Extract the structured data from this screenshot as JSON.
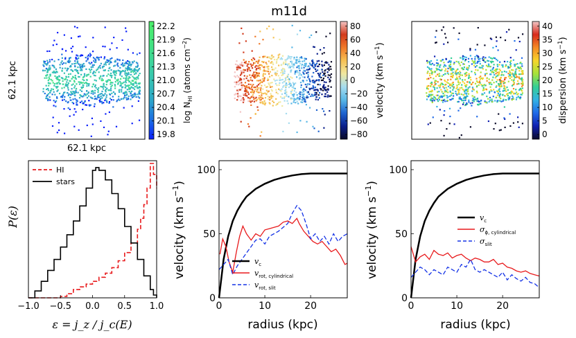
{
  "figure": {
    "title": "m11d"
  },
  "chart_data": [
    {
      "type": "heatmap",
      "id": "hi-column-density",
      "xlabel": "62.1 kpc",
      "ylabel": "62.1 kpc",
      "colorbar_label": "log N_HI (atoms cm^-2)",
      "colorbar_label_parts": {
        "pre": "log N",
        "sub": "HI",
        "post": " (atoms cm",
        "sup": "−2",
        "end": ")"
      },
      "colormap": [
        "#0a1ffb",
        "#1d70e3",
        "#2ea7c9",
        "#36c3b4",
        "#3fd79a",
        "#45e67e",
        "#4cf06a"
      ],
      "ticks": [
        "22.2",
        "21.9",
        "21.6",
        "21.3",
        "21.0",
        "20.7",
        "20.4",
        "20.1",
        "19.8"
      ]
    },
    {
      "type": "heatmap",
      "id": "velocity-map",
      "colorbar_label": "velocity (km s^-1)",
      "colorbar_label_parts": {
        "pre": "velocity (km s",
        "sup": "−1",
        "end": ")"
      },
      "colormap": [
        "#0a0a28",
        "#0b1f8a",
        "#1e64d0",
        "#58b7e6",
        "#a5dcef",
        "#f0e8a0",
        "#f6c154",
        "#f07a2a",
        "#d23a1c",
        "#f3c4c4"
      ],
      "ticks": [
        "80",
        "60",
        "40",
        "20",
        "0",
        "−20",
        "−40",
        "−60",
        "−80"
      ]
    },
    {
      "type": "heatmap",
      "id": "dispersion-map",
      "colorbar_label": "dispersion (km s^-1)",
      "colorbar_label_parts": {
        "pre": "dispersion (km s",
        "sup": "−1",
        "end": ")"
      },
      "colormap": [
        "#0b0b2a",
        "#1020b0",
        "#1f6ae8",
        "#33b1e4",
        "#34cf96",
        "#a6e23b",
        "#f6d52c",
        "#f58a25",
        "#d82b1d",
        "#f2c8c8"
      ],
      "ticks": [
        "40",
        "35",
        "30",
        "25",
        "20",
        "15",
        "10",
        "5",
        "0"
      ]
    },
    {
      "type": "line",
      "id": "epsilon-distribution",
      "xlabel": "ε = j_z / j_c(E)",
      "ylabel": "P(ε)",
      "xlim": [
        -1.0,
        1.0
      ],
      "ylim": [
        0,
        1.0
      ],
      "xticks": [
        "−1.0",
        "−0.5",
        "0.0",
        "0.5",
        "1.0"
      ],
      "legend": {
        "placement": "top-left"
      },
      "series": [
        {
          "name": "HI",
          "color": "#e8191b",
          "dash": "dashed",
          "x": [
            -1.0,
            -0.9,
            -0.8,
            -0.7,
            -0.6,
            -0.5,
            -0.4,
            -0.3,
            -0.2,
            -0.1,
            0.0,
            0.1,
            0.2,
            0.3,
            0.4,
            0.5,
            0.6,
            0.7,
            0.75,
            0.8,
            0.85,
            0.9,
            0.95,
            1.0
          ],
          "values": [
            0.0,
            0.0,
            0.0,
            0.0,
            0.0,
            0.01,
            0.03,
            0.06,
            0.08,
            0.1,
            0.12,
            0.15,
            0.18,
            0.22,
            0.27,
            0.33,
            0.4,
            0.5,
            0.58,
            0.68,
            0.8,
            0.98,
            0.9,
            0.8
          ]
        },
        {
          "name": "stars",
          "color": "#000000",
          "dash": "solid",
          "x": [
            -1.0,
            -0.9,
            -0.8,
            -0.7,
            -0.6,
            -0.5,
            -0.4,
            -0.3,
            -0.2,
            -0.1,
            0.0,
            0.05,
            0.1,
            0.2,
            0.3,
            0.4,
            0.5,
            0.6,
            0.7,
            0.8,
            0.9,
            0.95,
            1.0
          ],
          "values": [
            0.0,
            0.05,
            0.12,
            0.2,
            0.28,
            0.37,
            0.46,
            0.56,
            0.67,
            0.8,
            0.93,
            0.95,
            0.93,
            0.86,
            0.76,
            0.65,
            0.52,
            0.4,
            0.28,
            0.16,
            0.06,
            0.02,
            0.0
          ]
        }
      ]
    },
    {
      "type": "line",
      "id": "rotation-curve",
      "xlabel": "radius (kpc)",
      "ylabel": "velocity (km s^-1)",
      "ylabel_parts": {
        "pre": "velocity (km s",
        "sup": "−1",
        "end": ")"
      },
      "xlim": [
        0,
        28
      ],
      "ylim": [
        0,
        107
      ],
      "xticks": [
        0,
        10,
        20
      ],
      "yticks": [
        0,
        50,
        100
      ],
      "legend": {
        "placement": "lower-left"
      },
      "series": [
        {
          "name": "v_c",
          "label_main": "v",
          "label_sub": "c",
          "color": "#000000",
          "dash": "solid",
          "width": 2.5,
          "x": [
            0,
            1,
            2,
            3,
            4,
            5,
            6,
            8,
            10,
            12,
            14,
            16,
            18,
            20,
            22,
            24,
            26,
            28
          ],
          "values": [
            0,
            30,
            48,
            60,
            68,
            74,
            79,
            85,
            89,
            92,
            94,
            95.5,
            96.5,
            97,
            97,
            97,
            97,
            97
          ]
        },
        {
          "name": "v_rot, cylindrical",
          "label_main": "v",
          "label_sub": "rot, cylindrical",
          "color": "#e8191b",
          "dash": "solid",
          "width": 1.3,
          "x": [
            0.2,
            0.8,
            1.5,
            2.2,
            3.0,
            3.8,
            4.5,
            5.2,
            6.0,
            7.0,
            8.0,
            9.0,
            10.0,
            11.0,
            12.0,
            13.0,
            14.0,
            15.0,
            16.0,
            17.0,
            17.5,
            18.5,
            19.5,
            20.5,
            21.5,
            22.5,
            23.5,
            24.5,
            25.5,
            26.5,
            27.5,
            28.0
          ],
          "values": [
            34,
            46,
            40,
            28,
            20,
            36,
            48,
            56,
            50,
            45,
            50,
            48,
            53,
            54,
            55,
            56,
            59,
            60,
            58,
            62,
            58,
            52,
            48,
            44,
            42,
            44,
            40,
            36,
            38,
            33,
            26,
            27
          ]
        },
        {
          "name": "v_rot, slit",
          "label_main": "v",
          "label_sub": "rot, slit",
          "color": "#1432e6",
          "dash": "dashed",
          "width": 1.3,
          "x": [
            0,
            1,
            2,
            3,
            4,
            5,
            6,
            7,
            8,
            9,
            10,
            11,
            12,
            13,
            14,
            15,
            16,
            17,
            18,
            19,
            20,
            21,
            22,
            23,
            24,
            25,
            26,
            27,
            28
          ],
          "values": [
            22,
            26,
            30,
            18,
            25,
            30,
            35,
            40,
            45,
            46,
            42,
            48,
            50,
            52,
            55,
            58,
            66,
            72,
            68,
            58,
            46,
            50,
            44,
            48,
            42,
            50,
            44,
            48,
            50
          ]
        }
      ]
    },
    {
      "type": "line",
      "id": "dispersion-curve",
      "xlabel": "radius (kpc)",
      "ylabel": "velocity (km s^-1)",
      "ylabel_parts": {
        "pre": "velocity (km s",
        "sup": "−1",
        "end": ")"
      },
      "xlim": [
        0,
        28
      ],
      "ylim": [
        0,
        107
      ],
      "xticks": [
        0,
        10,
        20
      ],
      "yticks": [
        0,
        50,
        100
      ],
      "legend": {
        "placement": "center-right"
      },
      "series": [
        {
          "name": "v_c",
          "label_main": "v",
          "label_sub": "c",
          "color": "#000000",
          "dash": "solid",
          "width": 2.5,
          "x": [
            0,
            1,
            2,
            3,
            4,
            5,
            6,
            8,
            10,
            12,
            14,
            16,
            18,
            20,
            22,
            24,
            26,
            28
          ],
          "values": [
            0,
            30,
            48,
            60,
            68,
            74,
            79,
            85,
            89,
            92,
            94,
            95.5,
            96.5,
            97,
            97,
            97,
            97,
            97
          ]
        },
        {
          "name": "σ_φ, cylindrical",
          "label_main": "σ",
          "label_sub": "ϕ, cylindrical",
          "color": "#e8191b",
          "dash": "solid",
          "width": 1.3,
          "x": [
            0,
            0.5,
            1,
            2,
            3,
            4,
            5,
            6,
            7,
            8,
            9,
            10,
            11,
            12,
            13,
            14,
            15,
            16,
            17,
            18,
            19,
            20,
            21,
            22,
            23,
            24,
            25,
            26,
            27,
            28
          ],
          "values": [
            40,
            34,
            28,
            32,
            34,
            30,
            37,
            34,
            33,
            35,
            31,
            33,
            34,
            31,
            29,
            31,
            30,
            28,
            28,
            30,
            26,
            27,
            24,
            23,
            21,
            20,
            21,
            19,
            18,
            17
          ]
        },
        {
          "name": "σ_slit",
          "label_main": "σ",
          "label_sub": "slit",
          "color": "#1432e6",
          "dash": "dashed",
          "width": 1.3,
          "x": [
            0,
            1,
            2,
            3,
            4,
            5,
            6,
            7,
            8,
            9,
            10,
            11,
            12,
            13,
            14,
            15,
            16,
            17,
            18,
            19,
            20,
            21,
            22,
            23,
            24,
            25,
            26,
            27,
            28
          ],
          "values": [
            16,
            20,
            24,
            22,
            18,
            22,
            20,
            18,
            24,
            22,
            20,
            26,
            24,
            30,
            22,
            20,
            22,
            20,
            18,
            16,
            20,
            14,
            18,
            15,
            13,
            16,
            12,
            11,
            8
          ]
        }
      ]
    }
  ]
}
